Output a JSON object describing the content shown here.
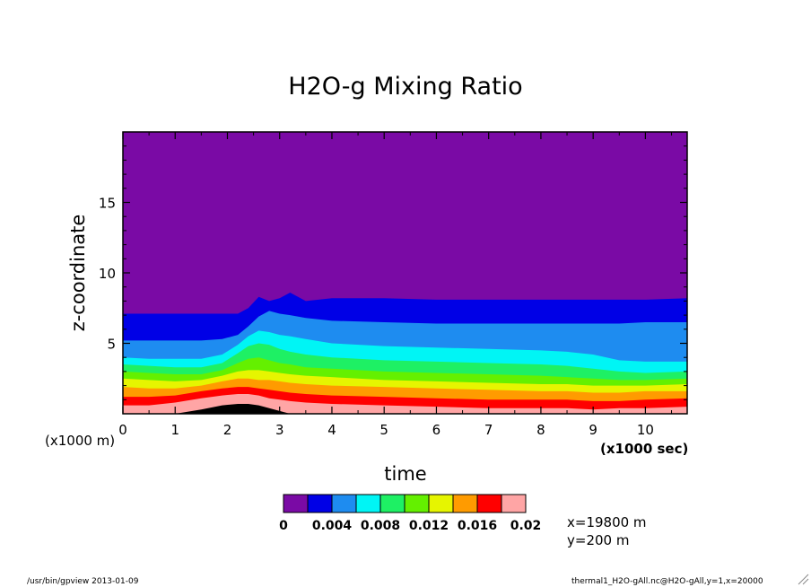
{
  "title": "H2O-g Mixing Ratio",
  "footer_left": "/usr/bin/gpview  2013-01-09",
  "footer_right": "thermal1_H2O-gAll.nc@H2O-gAll,y=1,x=20000",
  "chart_data": {
    "type": "heatmap",
    "title": "H2O-g Mixing Ratio",
    "xlabel": "time",
    "ylabel": "z-coordinate",
    "x_unit_label": "(x1000 sec)",
    "y_unit_label": "(x1000 m)",
    "xlim": [
      0,
      10.8
    ],
    "ylim": [
      0,
      20
    ],
    "x_ticks": [
      0,
      1,
      2,
      3,
      4,
      5,
      6,
      7,
      8,
      9,
      10
    ],
    "y_ticks": [
      5,
      10,
      15
    ],
    "levels": [
      0,
      0.002,
      0.004,
      0.006,
      0.008,
      0.01,
      0.012,
      0.014,
      0.016,
      0.018,
      0.02
    ],
    "colorbar_labels": [
      "0",
      "0.004",
      "0.008",
      "0.012",
      "0.016",
      "0.02"
    ],
    "colors": [
      "#7a0aa5",
      "#0000e6",
      "#1e8cf0",
      "#00f5f5",
      "#1ef064",
      "#64f000",
      "#e6f500",
      "#ff9b00",
      "#ff0000",
      "#ffa5a5"
    ],
    "section_info": [
      "x=19800 m",
      "y=200 m"
    ],
    "contour_heights_x1000m": {
      "x": [
        0,
        0.5,
        1.0,
        1.5,
        1.9,
        2.2,
        2.4,
        2.6,
        2.8,
        3.0,
        3.2,
        3.5,
        4.0,
        5.0,
        6.0,
        7.0,
        8.0,
        8.5,
        9.0,
        9.5,
        10.0,
        10.8
      ],
      "boundaries": [
        {
          "level": 0.002,
          "z": [
            7.1,
            7.1,
            7.1,
            7.1,
            7.1,
            7.1,
            7.5,
            8.3,
            8.0,
            8.2,
            8.6,
            8.0,
            8.2,
            8.2,
            8.1,
            8.1,
            8.1,
            8.1,
            8.1,
            8.1,
            8.1,
            8.2
          ]
        },
        {
          "level": 0.004,
          "z": [
            5.2,
            5.2,
            5.2,
            5.2,
            5.3,
            5.6,
            6.2,
            6.9,
            7.3,
            7.1,
            7.0,
            6.8,
            6.6,
            6.5,
            6.4,
            6.4,
            6.4,
            6.4,
            6.4,
            6.4,
            6.5,
            6.5
          ]
        },
        {
          "level": 0.006,
          "z": [
            4.0,
            3.9,
            3.9,
            3.9,
            4.2,
            4.9,
            5.5,
            5.9,
            5.8,
            5.6,
            5.5,
            5.3,
            5.0,
            4.8,
            4.7,
            4.6,
            4.5,
            4.4,
            4.2,
            3.8,
            3.7,
            3.7
          ]
        },
        {
          "level": 0.008,
          "z": [
            3.5,
            3.4,
            3.3,
            3.3,
            3.6,
            4.3,
            4.8,
            5.0,
            4.9,
            4.6,
            4.4,
            4.2,
            4.0,
            3.8,
            3.7,
            3.6,
            3.5,
            3.4,
            3.2,
            3.0,
            2.9,
            3.0
          ]
        },
        {
          "level": 0.01,
          "z": [
            3.0,
            2.9,
            2.8,
            2.8,
            3.1,
            3.6,
            3.9,
            4.0,
            3.8,
            3.6,
            3.5,
            3.3,
            3.2,
            3.0,
            2.9,
            2.8,
            2.7,
            2.6,
            2.5,
            2.4,
            2.4,
            2.5
          ]
        },
        {
          "level": 0.012,
          "z": [
            2.5,
            2.4,
            2.3,
            2.4,
            2.7,
            3.0,
            3.1,
            3.1,
            3.0,
            2.9,
            2.8,
            2.7,
            2.6,
            2.4,
            2.3,
            2.2,
            2.1,
            2.1,
            2.0,
            2.0,
            2.0,
            2.1
          ]
        },
        {
          "level": 0.014,
          "z": [
            1.9,
            1.8,
            1.8,
            2.0,
            2.3,
            2.5,
            2.5,
            2.4,
            2.4,
            2.3,
            2.2,
            2.1,
            2.0,
            1.9,
            1.8,
            1.7,
            1.6,
            1.6,
            1.5,
            1.5,
            1.6,
            1.6
          ]
        },
        {
          "level": 0.016,
          "z": [
            1.2,
            1.2,
            1.3,
            1.6,
            1.8,
            1.9,
            1.9,
            1.8,
            1.7,
            1.6,
            1.5,
            1.4,
            1.3,
            1.2,
            1.1,
            1.0,
            1.0,
            1.0,
            0.9,
            0.9,
            1.0,
            1.1
          ]
        },
        {
          "level": 0.018,
          "z": [
            0.6,
            0.6,
            0.8,
            1.1,
            1.3,
            1.4,
            1.4,
            1.3,
            1.1,
            1.0,
            0.9,
            0.8,
            0.7,
            0.6,
            0.5,
            0.4,
            0.4,
            0.4,
            0.3,
            0.4,
            0.4,
            0.5
          ]
        },
        {
          "level": 0.02,
          "z": [
            0.0,
            0.0,
            0.0,
            0.3,
            0.6,
            0.7,
            0.7,
            0.6,
            0.4,
            0.2,
            0.0,
            0.0,
            0.0,
            0.0,
            0.0,
            0.0,
            0.0,
            0.0,
            0.0,
            0.0,
            0.0,
            0.0
          ]
        }
      ]
    }
  }
}
